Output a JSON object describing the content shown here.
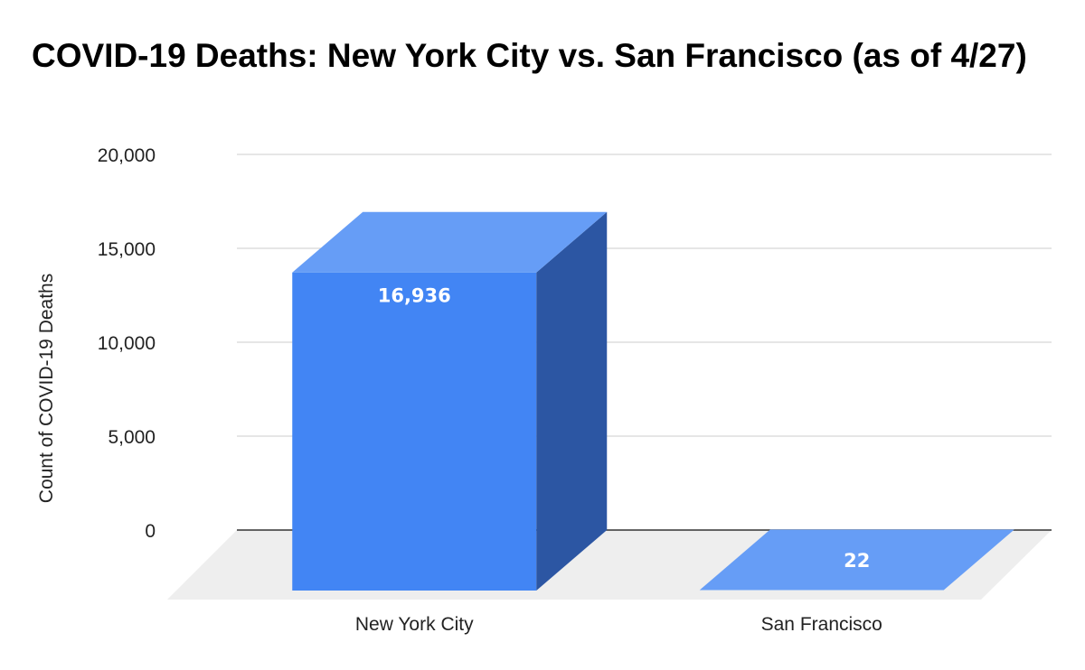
{
  "chart_data": {
    "type": "bar",
    "title": "COVID-19 Deaths: New York City vs. San Francisco (as of 4/27)",
    "ylabel": "Count of COVID-19 Deaths",
    "xlabel": "",
    "categories": [
      "New York City",
      "San Francisco"
    ],
    "values": [
      16936,
      22
    ],
    "data_labels": [
      "16,936",
      "22"
    ],
    "ylim": [
      0,
      20000
    ],
    "yticks": [
      0,
      5000,
      10000,
      15000,
      20000
    ],
    "ytick_labels": [
      "0",
      "5,000",
      "10,000",
      "15,000",
      "20,000"
    ],
    "three_d": true,
    "grid": true,
    "legend": "none",
    "colors": {
      "bar_front": "#4285f4",
      "bar_top": "#669df6",
      "bar_side": "#2c56a3",
      "floor": "#eeeeee",
      "grid": "#cccccc",
      "baseline": "#333333"
    }
  }
}
